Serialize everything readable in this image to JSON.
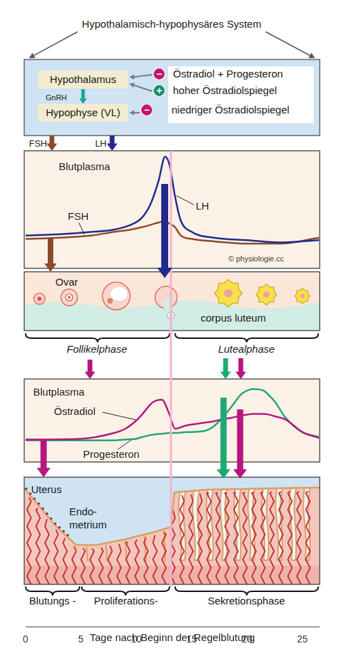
{
  "header": {
    "title": "Hypothalamisch-hypophysäres System"
  },
  "regulation": {
    "hypothalamus": "Hypothalamus",
    "hypophyse": "Hypophyse (VL)",
    "releasing_hormone": "GnRH",
    "feedback": [
      {
        "sign": "−",
        "text": "Östradiol + Progesteron"
      },
      {
        "sign": "+",
        "text": "hoher Östradiolspiegel"
      },
      {
        "sign": "−",
        "text": "niedriger Östradiolspiegel"
      }
    ],
    "outputs": [
      "FSH",
      "LH"
    ]
  },
  "chart_data": [
    {
      "type": "line",
      "title": "Blutplasma",
      "xlim": [
        0,
        26.5
      ],
      "ylim": [
        0,
        100
      ],
      "tick_labels": false,
      "grid": false,
      "annotations": [
        "© physiologie.cc"
      ],
      "x": [
        0,
        3,
        6,
        8,
        9.5,
        10.5,
        11.3,
        12,
        12.6,
        13,
        13.5,
        14,
        15,
        17,
        20,
        23,
        26.5
      ],
      "series": [
        {
          "name": "LH",
          "color": "#1f2a8c",
          "values": [
            28,
            29,
            31,
            33,
            37,
            43,
            55,
            74,
            95,
            88,
            61,
            41,
            31,
            26,
            24,
            22,
            24
          ]
        },
        {
          "name": "FSH",
          "color": "#8b4a2b",
          "values": [
            25,
            26,
            28,
            31,
            33,
            35,
            37,
            39,
            40,
            38,
            35,
            28,
            25,
            23,
            21,
            21,
            26
          ]
        }
      ]
    },
    {
      "type": "line",
      "title": "Blutplasma",
      "xlim": [
        0,
        26.5
      ],
      "ylim": [
        0,
        100
      ],
      "tick_labels": false,
      "grid": false,
      "x": [
        0,
        5,
        8,
        9,
        10,
        10.5,
        11.5,
        12.3,
        13,
        13.5,
        14.5,
        16,
        17,
        18,
        18.5,
        19.5,
        20,
        20.5,
        21.5,
        22,
        22.5,
        23.5,
        25,
        26.5
      ],
      "series": [
        {
          "name": "Östradiol",
          "color": "#b5177f",
          "values": [
            27,
            28,
            35,
            40,
            50,
            57,
            72,
            75,
            57,
            40,
            44,
            47,
            49,
            52,
            53,
            56,
            57,
            58,
            58,
            57,
            55,
            51,
            36,
            29
          ]
        },
        {
          "name": "Progesteron",
          "color": "#1fa876",
          "values": [
            26,
            26,
            26,
            27,
            28,
            30,
            33,
            34,
            35,
            35,
            36,
            37,
            43,
            57,
            65,
            82,
            86,
            88,
            86,
            80,
            73,
            53,
            36,
            30
          ]
        }
      ]
    }
  ],
  "ovary": {
    "label": "Ovar",
    "corpus_luteum": "corpus luteum",
    "phases": [
      "Follikelphase",
      "Lutealphase"
    ]
  },
  "uterus": {
    "label": "Uterus",
    "endometrium": [
      "Endo-",
      "metrium"
    ],
    "phases": [
      "Blutungs -",
      "Proliferations-",
      "Sekretionsphase"
    ]
  },
  "time_axis": {
    "xlim": [
      0,
      26.5
    ],
    "xticks": [
      0,
      5,
      10,
      15,
      20,
      25
    ],
    "label": "Tage nach Beginn der Regelblutung"
  }
}
